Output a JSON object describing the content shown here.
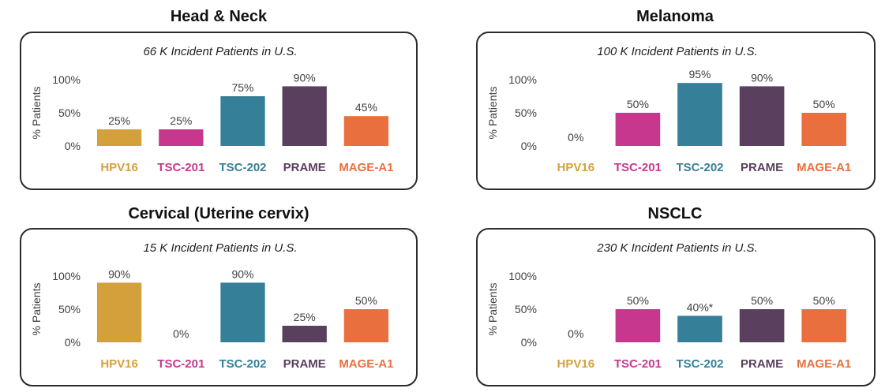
{
  "category_colors": [
    "#D4A03C",
    "#C8378E",
    "#357F98",
    "#5A3F5E",
    "#E9703E"
  ],
  "chart_data": [
    {
      "type": "bar",
      "title": "Head & Neck",
      "subtitle": "66 K Incident Patients in U.S.",
      "ylabel": "% Patients",
      "ylim": [
        0,
        100
      ],
      "yticks": [
        "0%",
        "50%",
        "100%"
      ],
      "categories": [
        "HPV16",
        "TSC-201",
        "TSC-202",
        "PRAME",
        "MAGE-A1"
      ],
      "values": [
        25,
        25,
        75,
        90,
        45
      ],
      "value_labels": [
        "25%",
        "25%",
        "75%",
        "90%",
        "45%"
      ],
      "grid": false
    },
    {
      "type": "bar",
      "title": "Melanoma",
      "subtitle": "100 K Incident Patients in U.S.",
      "ylabel": "% Patients",
      "ylim": [
        0,
        100
      ],
      "yticks": [
        "0%",
        "50%",
        "100%"
      ],
      "categories": [
        "HPV16",
        "TSC-201",
        "TSC-202",
        "PRAME",
        "MAGE-A1"
      ],
      "values": [
        0,
        50,
        95,
        90,
        50
      ],
      "value_labels": [
        "0%",
        "50%",
        "95%",
        "90%",
        "50%"
      ],
      "grid": false
    },
    {
      "type": "bar",
      "title": "Cervical (Uterine cervix)",
      "subtitle": "15 K Incident Patients in U.S.",
      "ylabel": "% Patients",
      "ylim": [
        0,
        100
      ],
      "yticks": [
        "0%",
        "50%",
        "100%"
      ],
      "categories": [
        "HPV16",
        "TSC-201",
        "TSC-202",
        "PRAME",
        "MAGE-A1"
      ],
      "values": [
        90,
        0,
        90,
        25,
        50
      ],
      "value_labels": [
        "90%",
        "0%",
        "90%",
        "25%",
        "50%"
      ],
      "grid": false
    },
    {
      "type": "bar",
      "title": "NSCLC",
      "subtitle": "230 K Incident Patients in U.S.",
      "ylabel": "% Patients",
      "ylim": [
        0,
        100
      ],
      "yticks": [
        "0%",
        "50%",
        "100%"
      ],
      "categories": [
        "HPV16",
        "TSC-201",
        "TSC-202",
        "PRAME",
        "MAGE-A1"
      ],
      "values": [
        0,
        50,
        40,
        50,
        50
      ],
      "value_labels": [
        "0%",
        "50%",
        "40%*",
        "50%",
        "50%"
      ],
      "grid": false
    }
  ]
}
